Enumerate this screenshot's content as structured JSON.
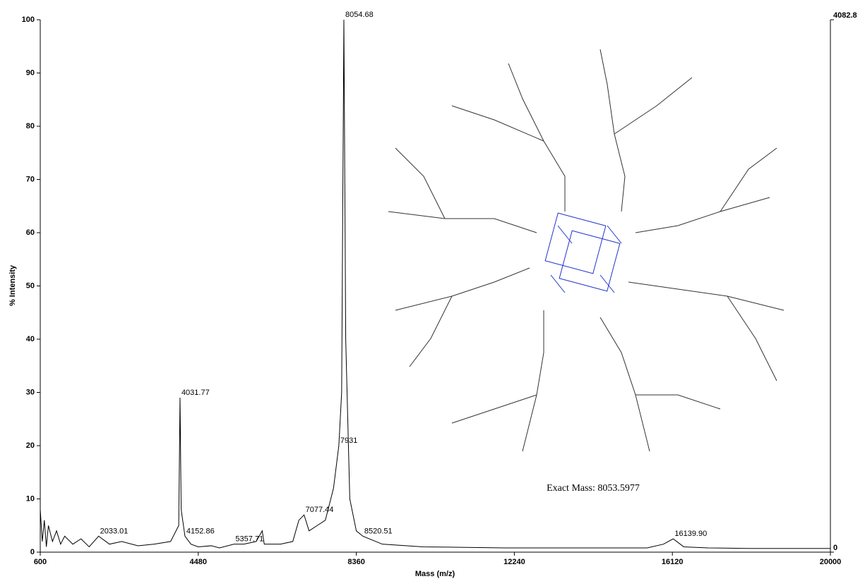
{
  "chart_data": {
    "type": "line",
    "xlabel": "Mass (m/z)",
    "ylabel": "% Intensity",
    "xlim": [
      600,
      20000
    ],
    "ylim": [
      0,
      100
    ],
    "y2lim": [
      0,
      4082.8
    ],
    "xticks": [
      600,
      4480,
      8360,
      12240,
      16120,
      20000
    ],
    "yticks": [
      0,
      10,
      20,
      30,
      40,
      50,
      60,
      70,
      80,
      90,
      100
    ],
    "y2ticks": [
      0,
      4082.8
    ],
    "series": [
      {
        "color": "#000000",
        "x": [
          600,
          650,
          700,
          750,
          800,
          900,
          1000,
          1100,
          1200,
          1400,
          1600,
          1800,
          2033.01,
          2300,
          2600,
          3000,
          3400,
          3800,
          4000,
          4031.77,
          4060,
          4152.86,
          4300,
          4480,
          4800,
          5000,
          5357.71,
          5600,
          5900,
          6050,
          6100,
          6500,
          6800,
          6950,
          7077.44,
          7200,
          7400,
          7600,
          7800,
          7931,
          8000,
          8054.68,
          8100,
          8200,
          8360,
          8520.51,
          9000,
          10000,
          12000,
          14000,
          15500,
          15900,
          16139.9,
          16400,
          17000,
          18000,
          20000
        ],
        "values": [
          8,
          2,
          6,
          1,
          5,
          2,
          4,
          1.5,
          3,
          1.5,
          2.5,
          1,
          3,
          1.5,
          2,
          1.2,
          1.5,
          2,
          5,
          29,
          8,
          3,
          1.5,
          1,
          1.2,
          0.8,
          1.5,
          1.5,
          2,
          4,
          1.5,
          1.5,
          2,
          6,
          7,
          4,
          5,
          6,
          12,
          20,
          30,
          100,
          40,
          10,
          4,
          3,
          1.5,
          1,
          0.8,
          0.8,
          0.8,
          1.5,
          2.5,
          1,
          0.8,
          0.7,
          0.7
        ]
      }
    ],
    "annotations": [
      {
        "text": "8054.68",
        "x": 8054.68,
        "y": 100
      },
      {
        "text": "4031.77",
        "x": 4031.77,
        "y": 29
      },
      {
        "text": "7931",
        "x": 7931,
        "y": 20
      },
      {
        "text": "7077.44",
        "x": 7077.44,
        "y": 7
      },
      {
        "text": "4152.86",
        "x": 4152.86,
        "y": 3
      },
      {
        "text": "2033.01",
        "x": 2033.01,
        "y": 3
      },
      {
        "text": "5357.71",
        "x": 5357.71,
        "y": 1.5
      },
      {
        "text": "8520.51",
        "x": 8520.51,
        "y": 3
      },
      {
        "text": "16139.90",
        "x": 16139.9,
        "y": 2.5
      }
    ],
    "structure_caption": "Exact Mass: 8053.5977"
  }
}
